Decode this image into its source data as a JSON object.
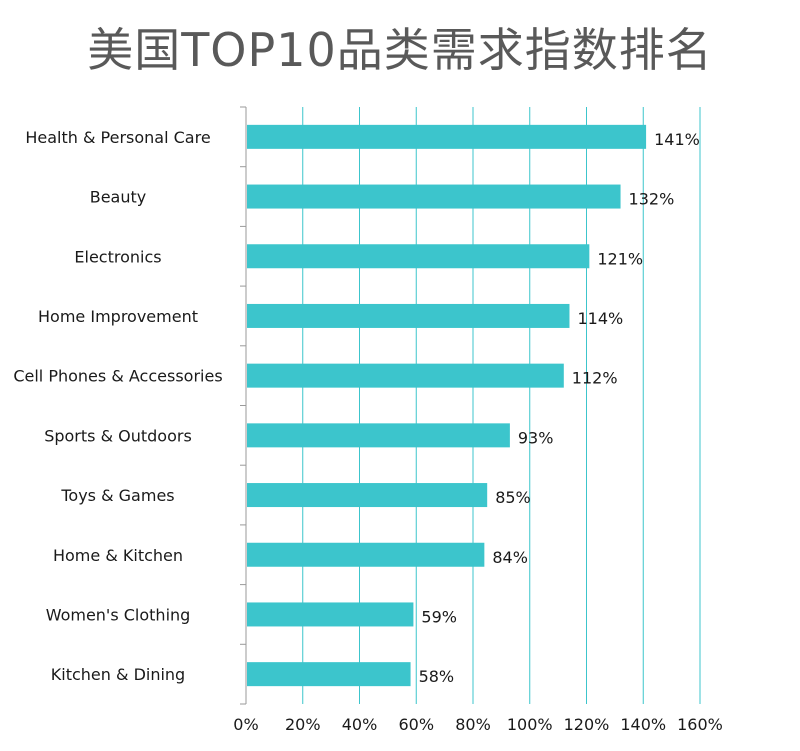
{
  "chart_data": {
    "type": "bar",
    "orientation": "horizontal",
    "title": "美国TOP10品类需求指数排名",
    "xlabel": "",
    "ylabel": "",
    "categories": [
      "Health & Personal Care",
      "Beauty",
      "Electronics",
      "Home Improvement",
      "Cell Phones & Accessories",
      "Sports & Outdoors",
      "Toys & Games",
      "Home & Kitchen",
      "Women's Clothing",
      "Kitchen & Dining"
    ],
    "values": [
      141,
      132,
      121,
      114,
      112,
      93,
      85,
      84,
      59,
      58
    ],
    "value_labels": [
      "141%",
      "132%",
      "121%",
      "114%",
      "112%",
      "93%",
      "85%",
      "84%",
      "59%",
      "58%"
    ],
    "xlim": [
      0,
      160
    ],
    "x_ticks": [
      0,
      20,
      40,
      60,
      80,
      100,
      120,
      140,
      160
    ],
    "x_tick_labels": [
      "0%",
      "20%",
      "40%",
      "60%",
      "80%",
      "100%",
      "120%",
      "140%",
      "160%"
    ],
    "grid": "vertical",
    "legend": "none",
    "colors": {
      "bar": "#3cc5cc",
      "grid": "#3cc5cc",
      "axis": "#9a9a9a",
      "title": "#595959",
      "text": "#1a1a1a"
    }
  }
}
